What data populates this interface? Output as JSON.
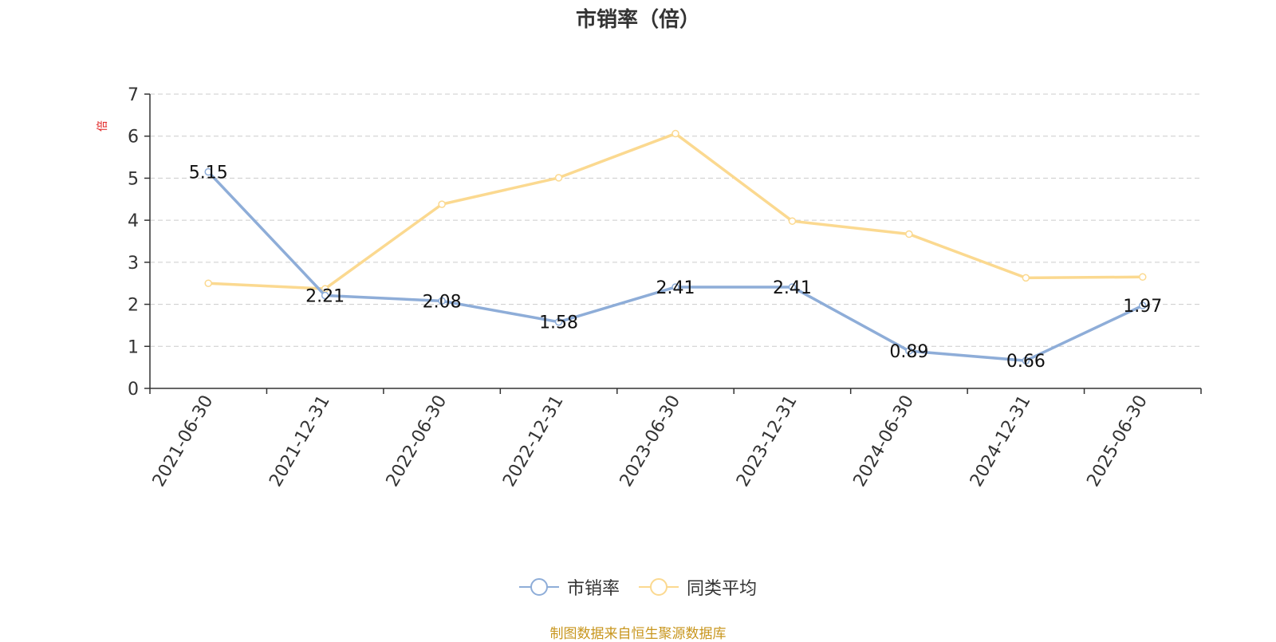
{
  "chart_data": {
    "type": "line",
    "title": "市销率（倍）",
    "ylabel": "倍",
    "xlabel": "",
    "categories": [
      "2021-06-30",
      "2021-12-31",
      "2022-06-30",
      "2022-12-31",
      "2023-06-30",
      "2023-12-31",
      "2024-06-30",
      "2024-12-31",
      "2025-06-30"
    ],
    "ylim": [
      0,
      7
    ],
    "yticks": [
      0,
      1,
      2,
      3,
      4,
      5,
      6,
      7
    ],
    "grid": true,
    "legend_position": "bottom",
    "series": [
      {
        "name": "市销率",
        "color": "#8eadd8",
        "values": [
          5.15,
          2.21,
          2.08,
          1.58,
          2.41,
          2.41,
          0.89,
          0.66,
          1.97
        ],
        "data_labels": [
          "5.15",
          "2.21",
          "2.08",
          "1.58",
          "2.41",
          "2.41",
          "0.89",
          "0.66",
          "1.97"
        ]
      },
      {
        "name": "同类平均",
        "color": "#fbd990",
        "values": [
          2.5,
          2.37,
          4.38,
          5.01,
          6.06,
          3.98,
          3.67,
          2.63,
          2.65
        ]
      }
    ]
  },
  "source_text": "制图数据来自恒生聚源数据库"
}
